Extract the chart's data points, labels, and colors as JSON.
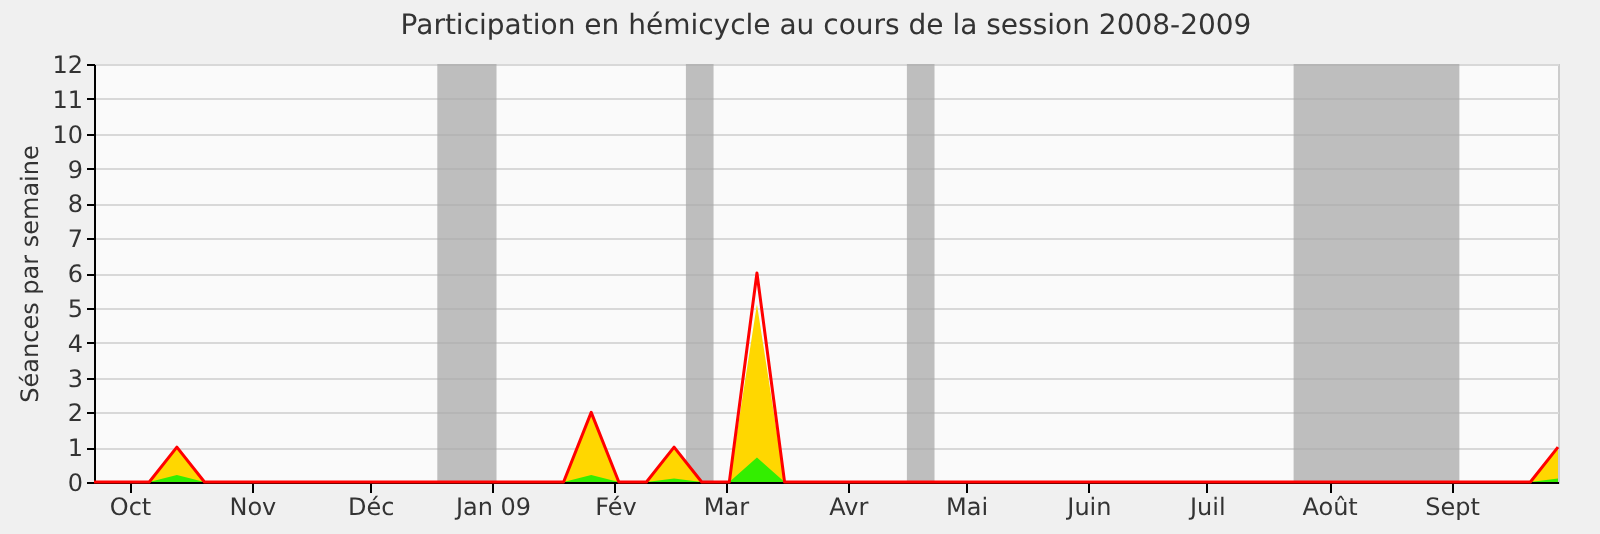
{
  "chart_data": {
    "type": "area",
    "title": "Participation en hémicycle au cours de la session 2008-2009",
    "ylabel": "Séances par semaine",
    "x": [
      "2008-09-22",
      "2008-09-29",
      "2008-10-06",
      "2008-10-13",
      "2008-10-20",
      "2008-10-27",
      "2008-11-03",
      "2008-11-10",
      "2008-11-17",
      "2008-11-24",
      "2008-12-01",
      "2008-12-08",
      "2008-12-15",
      "2008-12-22",
      "2008-12-29",
      "2009-01-05",
      "2009-01-12",
      "2009-01-19",
      "2009-01-26",
      "2009-02-02",
      "2009-02-09",
      "2009-02-16",
      "2009-02-23",
      "2009-03-02",
      "2009-03-09",
      "2009-03-16",
      "2009-03-23",
      "2009-03-30",
      "2009-04-06",
      "2009-04-13",
      "2009-04-20",
      "2009-04-27",
      "2009-05-04",
      "2009-05-11",
      "2009-05-18",
      "2009-05-25",
      "2009-06-01",
      "2009-06-08",
      "2009-06-15",
      "2009-06-22",
      "2009-06-29",
      "2009-07-06",
      "2009-07-13",
      "2009-07-20",
      "2009-07-27",
      "2009-08-03",
      "2009-08-10",
      "2009-08-17",
      "2009-08-24",
      "2009-08-31",
      "2009-09-07",
      "2009-09-14",
      "2009-09-21",
      "2009-09-28"
    ],
    "series": [
      {
        "type": "area",
        "color": "#ffd700",
        "values": [
          0,
          0,
          0,
          1,
          0,
          0,
          0,
          0,
          0,
          0,
          0,
          0,
          0,
          0,
          0,
          0,
          0,
          0,
          2,
          0,
          0,
          1,
          0,
          0,
          5.1,
          0,
          0,
          0,
          0,
          0,
          0,
          0,
          0,
          0,
          0,
          0,
          0,
          0,
          0,
          0,
          0,
          0,
          0,
          0,
          0,
          0,
          0,
          0,
          0,
          0,
          0,
          0,
          0,
          1
        ]
      },
      {
        "type": "area",
        "color": "#33ee00",
        "values": [
          0,
          0,
          0,
          0.2,
          0,
          0,
          0,
          0,
          0,
          0,
          0,
          0,
          0,
          0,
          0,
          0,
          0,
          0,
          0.2,
          0,
          0,
          0.1,
          0,
          0,
          0.7,
          0,
          0,
          0,
          0,
          0,
          0,
          0,
          0,
          0,
          0,
          0,
          0,
          0,
          0,
          0,
          0,
          0,
          0,
          0,
          0,
          0,
          0,
          0,
          0,
          0,
          0,
          0,
          0,
          0.1
        ]
      },
      {
        "type": "line",
        "color": "#ff0000",
        "values": [
          0,
          0,
          0,
          1,
          0,
          0,
          0,
          0,
          0,
          0,
          0,
          0,
          0,
          0,
          0,
          0,
          0,
          0,
          2,
          0,
          0,
          1,
          0,
          0,
          6,
          0,
          0,
          0,
          0,
          0,
          0,
          0,
          0,
          0,
          0,
          0,
          0,
          0,
          0,
          0,
          0,
          0,
          0,
          0,
          0,
          0,
          0,
          0,
          0,
          0,
          0,
          0,
          0,
          1
        ]
      }
    ],
    "xlim": [
      "2008-09-22",
      "2009-09-28"
    ],
    "xticks": [
      {
        "value": "2008-10-01",
        "label": "Oct"
      },
      {
        "value": "2008-11-01",
        "label": "Nov"
      },
      {
        "value": "2008-12-01",
        "label": "Déc"
      },
      {
        "value": "2009-01-01",
        "label": "Jan 09"
      },
      {
        "value": "2009-02-01",
        "label": "Fév"
      },
      {
        "value": "2009-03-01",
        "label": "Mar"
      },
      {
        "value": "2009-04-01",
        "label": "Avr"
      },
      {
        "value": "2009-05-01",
        "label": "Mai"
      },
      {
        "value": "2009-06-01",
        "label": "Juin"
      },
      {
        "value": "2009-07-01",
        "label": "Juil"
      },
      {
        "value": "2009-08-01",
        "label": "Août"
      },
      {
        "value": "2009-09-01",
        "label": "Sept"
      }
    ],
    "ylim": [
      0,
      12
    ],
    "yticks": [
      0,
      1,
      2,
      3,
      4,
      5,
      6,
      7,
      8,
      9,
      10,
      11,
      12
    ],
    "grid": "y",
    "bands": [
      {
        "axis": "x",
        "from": "2008-12-18",
        "to": "2009-01-02",
        "color": "#aaaaaa"
      },
      {
        "axis": "x",
        "from": "2009-02-19",
        "to": "2009-02-26",
        "color": "#aaaaaa"
      },
      {
        "axis": "x",
        "from": "2009-04-16",
        "to": "2009-04-23",
        "color": "#aaaaaa"
      },
      {
        "axis": "x",
        "from": "2009-07-23",
        "to": "2009-09-03",
        "color": "#aaaaaa"
      }
    ]
  }
}
